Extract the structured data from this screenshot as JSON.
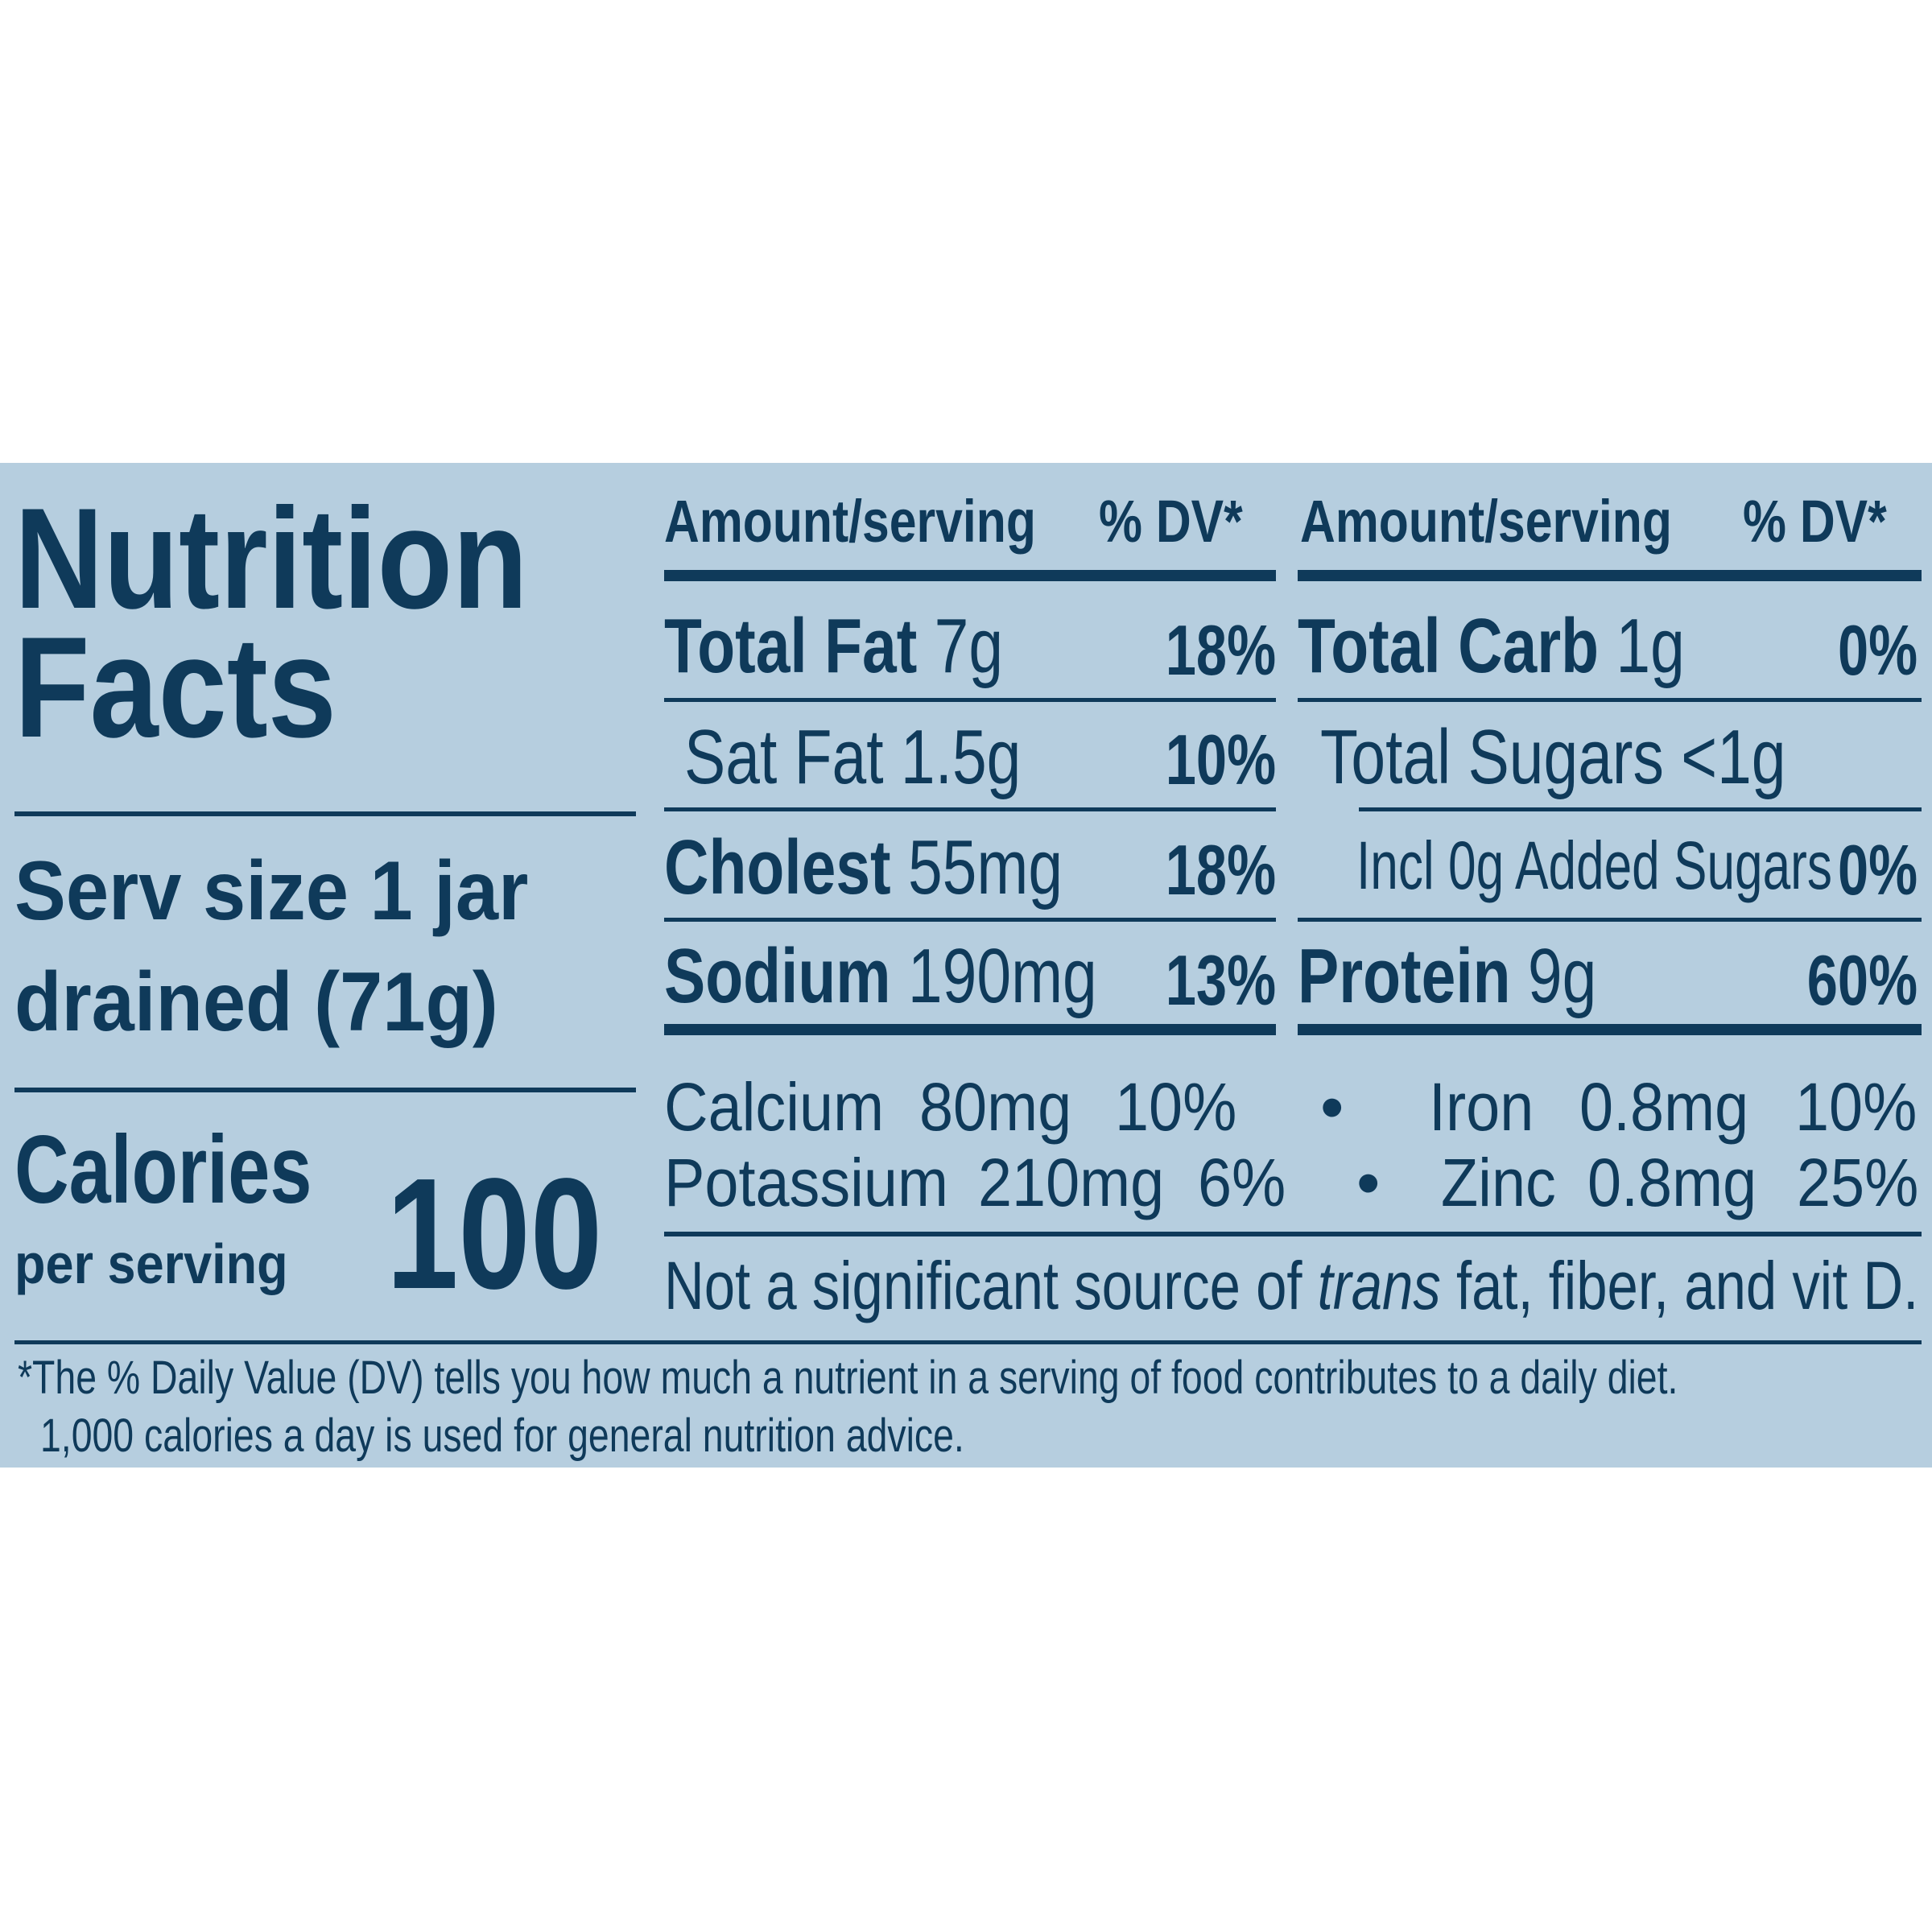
{
  "label": {
    "title_line1": "Nutrition",
    "title_line2": "Facts",
    "serving_line1": "Serv size 1 jar",
    "serving_line2": "drained (71g)",
    "calories_label": "Calories",
    "calories_sub": "per serving",
    "calories_value": "100",
    "header_amount": "Amount/serving",
    "header_dv": "% DV*",
    "left_rows": [
      {
        "name": "Total Fat",
        "amount": "7g",
        "dv": "18%"
      },
      {
        "name": "Sat Fat",
        "amount": "1.5g",
        "dv": "10%"
      },
      {
        "name": "Cholest",
        "amount": "55mg",
        "dv": "18%"
      },
      {
        "name": "Sodium",
        "amount": "190mg",
        "dv": "13%"
      }
    ],
    "right_rows": [
      {
        "name": "Total Carb",
        "amount": "1g",
        "dv": "0%"
      },
      {
        "name": "Total Sugars <1g",
        "amount": "",
        "dv": ""
      },
      {
        "name": "Incl 0g Added Sugars",
        "amount": "",
        "dv": "0%"
      },
      {
        "name": "Protein",
        "amount": "9g",
        "dv": "60%"
      }
    ],
    "minerals": [
      {
        "name": "Calcium",
        "amount": "80mg",
        "dv": "10%"
      },
      {
        "name": "Iron",
        "amount": "0.8mg",
        "dv": "10%"
      },
      {
        "name": "Potassium",
        "amount": "210mg",
        "dv": "6%"
      },
      {
        "name": "Zinc",
        "amount": "0.8mg",
        "dv": "25%"
      }
    ],
    "bullet": "•",
    "not_significant_pre": "Not a significant source of ",
    "not_significant_italic": "trans",
    "not_significant_post": " fat, fiber, and vit D.",
    "footnote_line1": "*The % Daily Value (DV) tells you how much a nutrient in a serving of food contributes to a daily diet.",
    "footnote_line2": "1,000 calories a day is used for general nutrition advice.",
    "colors": {
      "panel": "#b6cedf",
      "ink": "#0f3a5a",
      "page": "#ffffff"
    }
  }
}
